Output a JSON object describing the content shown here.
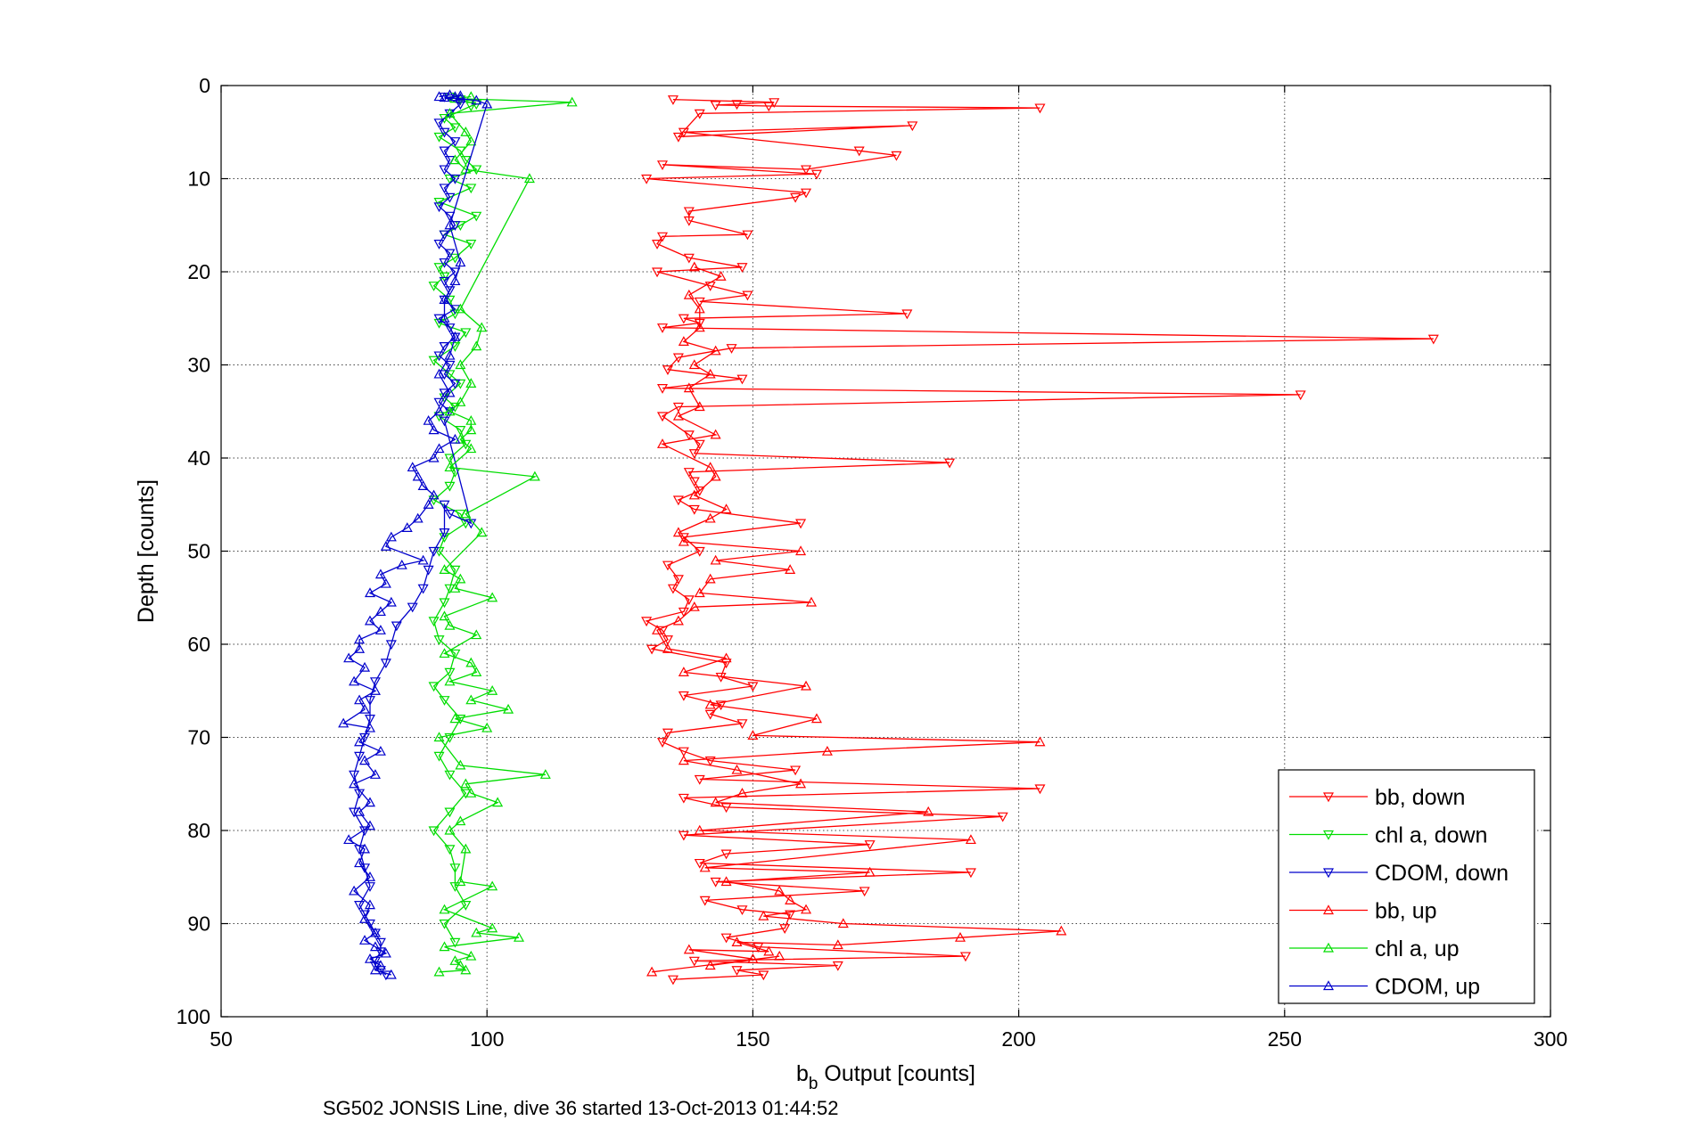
{
  "chart_data": {
    "type": "line",
    "title": "",
    "xlabel_main": "b",
    "xlabel_sub": "b",
    "xlabel_rest": " Output [counts]",
    "ylabel": "Depth [counts]",
    "footer": "SG502 JONSIS Line, dive 36 started 13-Oct-2013 01:44:52",
    "xlim": [
      50,
      300
    ],
    "ylim": [
      0,
      100
    ],
    "y_reversed": true,
    "grid": true,
    "legend_position": "bottom-right",
    "x_ticks": [
      "50",
      "100",
      "150",
      "200",
      "250",
      "300"
    ],
    "y_ticks": [
      "0",
      "10",
      "20",
      "30",
      "40",
      "50",
      "60",
      "70",
      "80",
      "90",
      "100"
    ],
    "series": [
      {
        "name": "bb, down",
        "color": "#ff0000",
        "marker": "down",
        "x": [
          135,
          154,
          147,
          143,
          153,
          204,
          140,
          136,
          180,
          137,
          170,
          177,
          160,
          133,
          162,
          130,
          160,
          158,
          138,
          138,
          149,
          133,
          132,
          138,
          148,
          132,
          142,
          149,
          140,
          179,
          137,
          140,
          133,
          278,
          146,
          136,
          134,
          148,
          133,
          253,
          136,
          133,
          138,
          140,
          139,
          187,
          138,
          139,
          140,
          136,
          139,
          159,
          137,
          140,
          134,
          136,
          135,
          138,
          137,
          130,
          133,
          134,
          131,
          145,
          144,
          150,
          137,
          144,
          142,
          148,
          134,
          133,
          137,
          142,
          158,
          140,
          204,
          137,
          145,
          197,
          137,
          172,
          145,
          140,
          191,
          143,
          171,
          141,
          148,
          157,
          156,
          145,
          151,
          190,
          139,
          166,
          147,
          152,
          135
        ],
        "y": [
          1.5,
          1.8,
          2,
          2.1,
          2.2,
          2.4,
          3,
          5.5,
          4.3,
          5,
          7,
          7.5,
          9,
          8.5,
          9.5,
          10,
          11.5,
          12,
          13.5,
          14.5,
          16,
          16.2,
          17,
          18.5,
          19.5,
          20,
          21.5,
          22.5,
          23.2,
          24.5,
          25,
          25.5,
          26,
          27.2,
          28.2,
          29.2,
          30.5,
          31.5,
          32.5,
          33.2,
          34.5,
          35.5,
          37.5,
          38.5,
          39.5,
          40.5,
          41.5,
          42.5,
          43.5,
          44.5,
          45.5,
          47,
          48.5,
          50,
          51.5,
          53,
          54,
          55.2,
          56.5,
          57.5,
          58.5,
          59.5,
          60.5,
          62,
          63.5,
          64.5,
          65.5,
          66.5,
          67.5,
          68.5,
          69.5,
          70.5,
          71.5,
          72.5,
          73.5,
          74.5,
          75.5,
          76.5,
          77.5,
          78.5,
          80.5,
          81.5,
          82.5,
          83.5,
          84.5,
          85.5,
          86.5,
          87.5,
          88.5,
          89,
          90.5,
          91.5,
          92.5,
          93.5,
          94,
          94.5,
          95,
          95.5,
          96
        ]
      },
      {
        "name": "chl a, down",
        "color": "#00dd00",
        "marker": "down",
        "x": [
          93,
          95,
          98,
          97,
          92,
          94,
          91,
          95,
          96,
          98,
          93,
          97,
          91,
          98,
          95,
          92,
          97,
          94,
          91,
          92,
          90,
          93,
          94,
          91,
          96,
          94,
          90,
          93,
          95,
          92,
          94,
          91,
          95,
          96,
          93,
          94,
          93,
          90,
          95,
          96,
          92,
          91,
          94,
          93,
          92,
          90,
          91,
          94,
          93,
          90,
          92,
          95,
          93,
          91,
          93,
          96,
          93,
          90,
          93,
          94,
          94,
          96,
          92,
          94
        ],
        "y": [
          1.2,
          1.5,
          2,
          2.2,
          3.5,
          4.5,
          5.5,
          7,
          8,
          9,
          10,
          11,
          12.5,
          14,
          15,
          16,
          17,
          18.5,
          19.5,
          20.5,
          21.5,
          23,
          24.5,
          25.5,
          26.5,
          28,
          29.5,
          31,
          32,
          33.5,
          34.5,
          35.5,
          37,
          38.5,
          40,
          41.5,
          43,
          44.5,
          46,
          47,
          48.5,
          50,
          52,
          54,
          55.5,
          57.5,
          59.5,
          61,
          63,
          64.5,
          66,
          68,
          70,
          72,
          74,
          76,
          78,
          80,
          82,
          84,
          86,
          88,
          90,
          92
        ]
      },
      {
        "name": "CDOM, down",
        "color": "#0000cc",
        "marker": "down",
        "x": [
          92,
          95,
          93,
          91,
          92,
          94,
          92,
          93,
          92,
          94,
          92,
          93,
          91,
          93,
          94,
          92,
          91,
          93,
          92,
          94,
          92,
          93,
          92,
          94,
          91,
          93,
          94,
          92,
          91,
          93,
          92,
          94,
          92,
          91,
          93,
          92,
          97,
          93,
          92,
          92,
          90,
          89,
          88,
          86,
          83,
          82,
          81,
          79,
          78,
          78,
          77,
          76,
          75,
          76,
          75,
          77,
          76,
          77,
          78,
          76,
          77,
          78,
          79,
          80,
          80,
          79,
          79,
          80,
          81
        ],
        "y": [
          1.2,
          2,
          3,
          4,
          5,
          6,
          7,
          8,
          9,
          10,
          11,
          12,
          13,
          14,
          15,
          16,
          17,
          18,
          19,
          20,
          21,
          22,
          23,
          24,
          25,
          26,
          27,
          28,
          29,
          30,
          31,
          32,
          33,
          34,
          35,
          36,
          47,
          46,
          45,
          48,
          50,
          52,
          54,
          56,
          58,
          60,
          62,
          64,
          66,
          68,
          70,
          72,
          74,
          76,
          78,
          80,
          82,
          84,
          86,
          88,
          89,
          90,
          91,
          92,
          93,
          94,
          94.5,
          95,
          95.5
        ]
      },
      {
        "name": "bb, up",
        "color": "#ff0000",
        "marker": "up",
        "x": [
          131,
          155,
          142,
          150,
          138,
          153,
          147,
          166,
          189,
          208,
          167,
          152,
          160,
          157,
          155,
          145,
          172,
          141,
          191,
          140,
          183,
          143,
          148,
          159,
          147,
          137,
          164,
          204,
          150,
          162,
          142,
          160,
          137,
          145,
          134,
          132,
          136,
          139,
          161,
          140,
          142,
          157,
          143,
          159,
          137,
          136,
          142,
          145,
          139,
          143,
          142,
          133,
          143,
          136,
          140,
          138,
          142,
          139,
          143,
          137,
          140,
          140,
          138,
          144,
          139
        ],
        "y": [
          95.2,
          93.5,
          94.5,
          93.8,
          92.8,
          93,
          92,
          92.3,
          91.5,
          90.8,
          90,
          89.2,
          88.5,
          87.5,
          86.5,
          85.5,
          84.5,
          84,
          81,
          80,
          78,
          77,
          76,
          75,
          73.5,
          72.5,
          71.5,
          70.5,
          69.8,
          68,
          66.5,
          64.5,
          63,
          61.5,
          60.5,
          58.5,
          57.5,
          56,
          55.5,
          54.5,
          53,
          52,
          51,
          50,
          49,
          48,
          46.5,
          45.5,
          44,
          42,
          41,
          38.5,
          37.5,
          35.5,
          34.5,
          32.5,
          31,
          30,
          28.5,
          27.5,
          26,
          24,
          22.5,
          20.5,
          19.5
        ]
      },
      {
        "name": "chl a, up",
        "color": "#00dd00",
        "marker": "up",
        "x": [
          91,
          96,
          95,
          94,
          97,
          92,
          106,
          98,
          101,
          92,
          101,
          95,
          96,
          93,
          95,
          102,
          97,
          96,
          111,
          95,
          91,
          100,
          94,
          104,
          97,
          101,
          93,
          98,
          97,
          92,
          98,
          93,
          92,
          101,
          94,
          95,
          92,
          99,
          96,
          109,
          93,
          97,
          95,
          97,
          97,
          93,
          95,
          97,
          95,
          98,
          99,
          95,
          108,
          96,
          94,
          97,
          96,
          93,
          116,
          94,
          97
        ],
        "y": [
          95.2,
          95,
          94.5,
          94,
          93.5,
          92.5,
          91.5,
          91,
          90.5,
          88.5,
          86,
          85.5,
          82,
          80,
          79,
          77,
          76,
          75,
          74,
          73,
          70,
          69,
          68,
          67,
          66,
          65,
          64,
          63,
          62,
          61,
          59,
          58,
          57,
          55,
          54,
          53,
          52,
          48,
          46,
          42,
          41,
          39,
          38,
          37,
          36,
          35,
          34,
          32,
          30,
          28,
          26,
          24,
          10,
          9,
          8,
          6,
          5,
          3,
          1.8,
          1.4,
          1.2
        ]
      },
      {
        "name": "CDOM, up",
        "color": "#0000cc",
        "marker": "up",
        "x": [
          82,
          79,
          80,
          78,
          81,
          79,
          77,
          79,
          77,
          78,
          75,
          78,
          76,
          77,
          74,
          78,
          76,
          78,
          75,
          79,
          77,
          80,
          76,
          78,
          73,
          77,
          76,
          79,
          75,
          77,
          74,
          76,
          76,
          80,
          78,
          80,
          82,
          78,
          81,
          80,
          84,
          88,
          81,
          82,
          85,
          87,
          89,
          90,
          88,
          87,
          86,
          90,
          91,
          94,
          90,
          89,
          91,
          93,
          91,
          93,
          94,
          92,
          92,
          94,
          95,
          93,
          100,
          98,
          95,
          92,
          94,
          95,
          93,
          91
        ],
        "y": [
          95.5,
          95,
          94.5,
          93.8,
          93.2,
          92.5,
          91.8,
          91,
          89.5,
          88,
          86.5,
          85,
          83.5,
          82,
          81,
          79.5,
          78,
          77,
          75,
          74,
          72.5,
          71.5,
          70.5,
          69,
          68.5,
          67,
          66,
          65,
          64,
          62.5,
          61.5,
          60.5,
          59.5,
          58.5,
          57.5,
          56.5,
          55.5,
          54.5,
          53.5,
          52.5,
          51.5,
          51,
          49.5,
          48.5,
          47.5,
          46.5,
          45,
          44,
          43,
          42,
          41,
          40,
          39,
          38,
          37,
          36,
          35,
          33,
          31,
          29,
          27,
          25,
          23,
          21,
          19,
          15,
          2,
          1.6,
          1.4,
          1.3,
          1.2,
          1.1,
          1,
          1.2
        ]
      }
    ]
  }
}
